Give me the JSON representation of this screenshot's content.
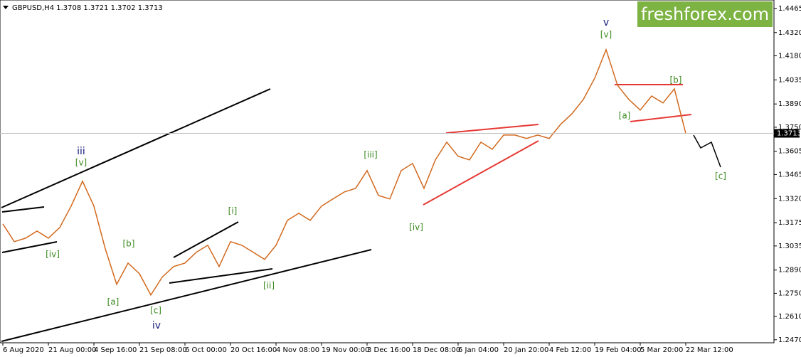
{
  "chart_data": {
    "type": "line",
    "title": "GBPUSD,H4  1.3708 1.3721 1.3702 1.3713",
    "watermark": "freshforex.com",
    "color": "#d2691e",
    "categories": [
      "6 Aug 2020",
      null,
      null,
      null,
      "21 Aug 00:00",
      null,
      null,
      null,
      "4 Sep 16:00",
      null,
      null,
      null,
      "21 Sep 08:00",
      null,
      null,
      null,
      "6 Oct 00:00",
      null,
      null,
      null,
      "20 Oct 16:00",
      null,
      null,
      null,
      "4 Nov 08:00",
      null,
      null,
      null,
      "19 Nov 00:00",
      null,
      null,
      null,
      "3 Dec 16:00",
      null,
      null,
      null,
      "18 Dec 08:00",
      null,
      null,
      null,
      "6 Jan 04:00",
      null,
      null,
      null,
      "20 Jan 20:00",
      null,
      null,
      null,
      "4 Feb 12:00",
      null,
      null,
      null,
      "19 Feb 04:00",
      null,
      null,
      null,
      "5 Mar 20:00",
      null,
      null,
      null,
      "22 Mar 12:00"
    ],
    "values": [
      1.3168,
      1.3061,
      1.3082,
      1.3125,
      1.3082,
      1.3146,
      1.3275,
      1.3425,
      1.3275,
      1.3018,
      1.2804,
      1.2932,
      1.2868,
      1.274,
      1.2847,
      1.2911,
      1.2932,
      1.2997,
      1.3039,
      1.2911,
      1.3061,
      1.3039,
      1.2997,
      1.2954,
      1.3039,
      1.3189,
      1.3232,
      1.3189,
      1.3275,
      1.3318,
      1.336,
      1.3382,
      1.3489,
      1.3339,
      1.3318,
      1.3489,
      1.3532,
      1.3382,
      1.3553,
      1.366,
      1.3575,
      1.3553,
      1.366,
      1.3617,
      1.3703,
      1.3703,
      1.3682,
      1.3703,
      1.3682,
      1.3767,
      1.3831,
      1.3917,
      1.4045,
      1.4217,
      1.4003,
      1.3917,
      1.3853,
      1.3938,
      1.3896,
      1.3981,
      1.3713
    ],
    "last_price": 1.3713,
    "ylim": [
      1.2452,
      1.4516
    ],
    "yticks": [
      1.4465,
      {
        "value": 1.432,
        "label": "1.4320"
      },
      {
        "value": 1.418,
        "label": "1.4180"
      },
      1.4035,
      {
        "value": 1.389,
        "label": "1.3890"
      },
      {
        "value": 1.375,
        "label": "1.3750"
      },
      1.3605,
      1.3465,
      {
        "value": 1.332,
        "label": "1.3320"
      },
      1.3175,
      1.3035,
      {
        "value": 1.289,
        "label": "1.2890"
      },
      {
        "value": 1.275,
        "label": "1.2750"
      },
      {
        "value": 1.261,
        "label": "1.2610"
      },
      {
        "value": 1.247,
        "label": "1.2470"
      }
    ],
    "annotations": [
      "iii",
      "[v]",
      "[iv]",
      "[b]",
      "[a]",
      "[c]",
      "iv",
      "[i]",
      "[ii]",
      "[iii]",
      "[iv]",
      "v",
      "[v]",
      "[a]",
      "[b]",
      "[c]"
    ]
  }
}
